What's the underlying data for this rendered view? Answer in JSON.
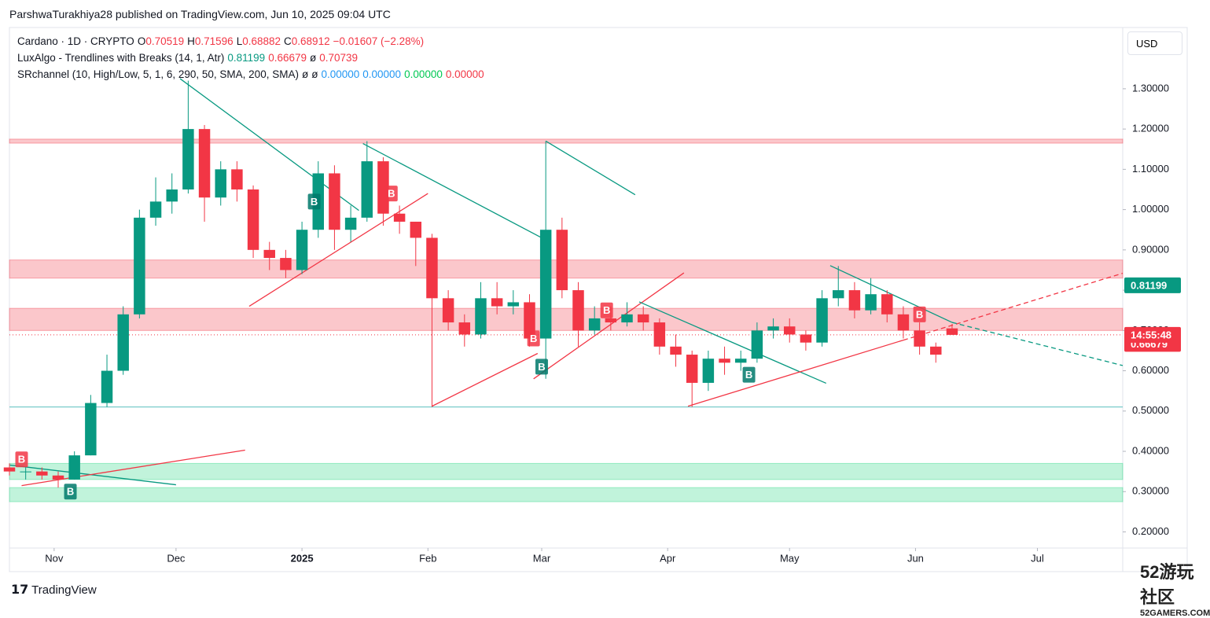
{
  "header": {
    "published": "ParshwaTurakhiya28 published on TradingView.com, Jun 10, 2025 09:04 UTC",
    "currency": "USD",
    "brand": "TradingView"
  },
  "legend": {
    "symbol": "Cardano · 1D · CRYPTO",
    "ohlc": [
      {
        "k": "O",
        "v": "0.70519"
      },
      {
        "k": "H",
        "v": "0.71596"
      },
      {
        "k": "L",
        "v": "0.68882"
      },
      {
        "k": "C",
        "v": "0.68912"
      }
    ],
    "change": "−0.01607 (−2.28%)",
    "indicators": [
      {
        "name": "LuxAlgo - Trendlines with Breaks (14, 1, Atr)",
        "values": [
          {
            "text": "0.81199",
            "color": "#089981"
          },
          {
            "text": "0.66679",
            "color": "#f23645"
          },
          {
            "text": "ø",
            "color": "#131722"
          },
          {
            "text": "0.70739",
            "color": "#f23645"
          }
        ]
      },
      {
        "name": "SRchannel (10, High/Low, 5, 1, 6, 290, 50, SMA, 200, SMA)",
        "values": [
          {
            "text": "ø",
            "color": "#131722"
          },
          {
            "text": "ø",
            "color": "#131722"
          },
          {
            "text": "0.00000",
            "color": "#2196f3"
          },
          {
            "text": "0.00000",
            "color": "#2196f3"
          },
          {
            "text": "0.00000",
            "color": "#00c853"
          },
          {
            "text": "0.00000",
            "color": "#f23645"
          }
        ]
      }
    ]
  },
  "watermark": {
    "title": "52游玩社区",
    "site": "52GAMERS.COM"
  },
  "chart_data": {
    "type": "candlestick",
    "xlim": [
      0,
      274
    ],
    "ylim": [
      0.16,
      1.452
    ],
    "xticks": [
      {
        "value": 11,
        "label": "Nov"
      },
      {
        "value": 41,
        "label": "Dec"
      },
      {
        "value": 72,
        "label": "2025"
      },
      {
        "value": 103,
        "label": "Feb"
      },
      {
        "value": 131,
        "label": "Mar"
      },
      {
        "value": 162,
        "label": "Apr"
      },
      {
        "value": 192,
        "label": "May"
      },
      {
        "value": 223,
        "label": "Jun"
      },
      {
        "value": 253,
        "label": "Jul"
      }
    ],
    "yticks": [
      {
        "value": 0.2,
        "label": "0.20000"
      },
      {
        "value": 0.3,
        "label": "0.30000"
      },
      {
        "value": 0.4,
        "label": "0.40000"
      },
      {
        "value": 0.5,
        "label": "0.50000"
      },
      {
        "value": 0.6,
        "label": "0.60000"
      },
      {
        "value": 0.7,
        "label": "0.70000"
      },
      {
        "value": 0.8,
        "label": "0.80000"
      },
      {
        "value": 0.9,
        "label": "0.90000"
      },
      {
        "value": 1.0,
        "label": "1.00000"
      },
      {
        "value": 1.1,
        "label": "1.10000"
      },
      {
        "value": 1.2,
        "label": "1.20000"
      },
      {
        "value": 1.3,
        "label": "1.30000"
      }
    ],
    "up_color": "#089981",
    "down_color": "#f23645",
    "x": [
      0,
      4,
      8,
      12,
      16,
      20,
      24,
      28,
      32,
      36,
      40,
      44,
      48,
      52,
      56,
      60,
      64,
      68,
      72,
      76,
      80,
      84,
      88,
      92,
      96,
      100,
      104,
      108,
      112,
      116,
      120,
      124,
      128,
      132,
      136,
      140,
      144,
      148,
      152,
      156,
      160,
      164,
      168,
      172,
      176,
      180,
      184,
      188,
      192,
      196,
      200,
      204,
      208,
      212,
      216,
      220,
      224,
      228,
      232
    ],
    "open": [
      0.36,
      0.35,
      0.35,
      0.34,
      0.33,
      0.39,
      0.52,
      0.6,
      0.74,
      0.98,
      1.02,
      1.05,
      1.2,
      1.03,
      1.1,
      1.05,
      0.9,
      0.88,
      0.85,
      0.95,
      1.09,
      0.95,
      0.98,
      1.12,
      0.99,
      0.97,
      0.93,
      0.78,
      0.72,
      0.69,
      0.78,
      0.76,
      0.77,
      0.68,
      0.95,
      0.8,
      0.7,
      0.73,
      0.72,
      0.74,
      0.72,
      0.66,
      0.64,
      0.57,
      0.63,
      0.62,
      0.63,
      0.7,
      0.71,
      0.69,
      0.67,
      0.78,
      0.8,
      0.75,
      0.79,
      0.74,
      0.7,
      0.66,
      0.70519
    ],
    "high": [
      0.37,
      0.36,
      0.36,
      0.35,
      0.4,
      0.54,
      0.64,
      0.76,
      1.0,
      1.08,
      1.09,
      1.32,
      1.21,
      1.12,
      1.12,
      1.06,
      0.92,
      0.9,
      0.97,
      1.12,
      1.11,
      1.01,
      1.17,
      1.13,
      1.01,
      0.97,
      0.94,
      0.8,
      0.74,
      0.82,
      0.82,
      0.8,
      0.79,
      1.17,
      0.98,
      0.82,
      0.76,
      0.76,
      0.77,
      0.76,
      0.73,
      0.69,
      0.65,
      0.65,
      0.66,
      0.65,
      0.72,
      0.73,
      0.73,
      0.7,
      0.8,
      0.86,
      0.82,
      0.83,
      0.8,
      0.76,
      0.72,
      0.67,
      0.71596
    ],
    "low": [
      0.34,
      0.33,
      0.33,
      0.31,
      0.33,
      0.39,
      0.51,
      0.59,
      0.73,
      0.96,
      0.99,
      1.04,
      0.97,
      1.01,
      1.02,
      0.88,
      0.85,
      0.83,
      0.84,
      0.93,
      0.9,
      0.92,
      0.97,
      0.96,
      0.94,
      0.86,
      0.51,
      0.7,
      0.66,
      0.68,
      0.74,
      0.74,
      0.66,
      0.58,
      0.78,
      0.66,
      0.69,
      0.7,
      0.71,
      0.7,
      0.64,
      0.61,
      0.51,
      0.55,
      0.59,
      0.6,
      0.62,
      0.68,
      0.67,
      0.65,
      0.66,
      0.76,
      0.73,
      0.74,
      0.72,
      0.68,
      0.64,
      0.62,
      0.68882
    ],
    "close": [
      0.35,
      0.35,
      0.34,
      0.33,
      0.39,
      0.52,
      0.6,
      0.74,
      0.98,
      1.02,
      1.05,
      1.2,
      1.03,
      1.1,
      1.05,
      0.9,
      0.88,
      0.85,
      0.95,
      1.09,
      0.95,
      0.98,
      1.12,
      0.99,
      0.97,
      0.93,
      0.78,
      0.72,
      0.69,
      0.78,
      0.76,
      0.77,
      0.68,
      0.95,
      0.8,
      0.7,
      0.73,
      0.72,
      0.74,
      0.72,
      0.66,
      0.64,
      0.57,
      0.63,
      0.62,
      0.63,
      0.7,
      0.71,
      0.69,
      0.67,
      0.78,
      0.8,
      0.75,
      0.79,
      0.74,
      0.7,
      0.66,
      0.64,
      0.68912
    ],
    "zones": [
      {
        "range": [
          1.165,
          1.175
        ],
        "color": "#f23645"
      },
      {
        "range": [
          0.83,
          0.875
        ],
        "color": "#f23645"
      },
      {
        "range": [
          0.7,
          0.755
        ],
        "color": "#f23645"
      },
      {
        "range": [
          0.33,
          0.37
        ],
        "color": "#22d47f"
      },
      {
        "range": [
          0.275,
          0.31
        ],
        "color": "#22d47f"
      }
    ],
    "support_line": {
      "value": 0.51,
      "color": "#5bc0be"
    },
    "trendlines": [
      {
        "points": [
          0,
          0.366,
          41,
          0.317
        ],
        "color": "#089981",
        "dashed": false
      },
      {
        "points": [
          3,
          0.315,
          58,
          0.403
        ],
        "color": "#f23645",
        "dashed": false
      },
      {
        "points": [
          42,
          1.325,
          86,
          0.998
        ],
        "color": "#089981",
        "dashed": false
      },
      {
        "points": [
          87,
          1.164,
          131,
          0.93
        ],
        "color": "#089981",
        "dashed": false
      },
      {
        "points": [
          59,
          0.76,
          103,
          1.04
        ],
        "color": "#f23645",
        "dashed": false
      },
      {
        "points": [
          132,
          1.17,
          154,
          1.037
        ],
        "color": "#089981",
        "dashed": false
      },
      {
        "points": [
          104,
          0.512,
          130,
          0.643
        ],
        "color": "#f23645",
        "dashed": false
      },
      {
        "points": [
          129,
          0.58,
          166,
          0.843
        ],
        "color": "#f23645",
        "dashed": false
      },
      {
        "points": [
          155,
          0.771,
          201,
          0.569
        ],
        "color": "#089981",
        "dashed": false
      },
      {
        "points": [
          167,
          0.512,
          220,
          0.676
        ],
        "color": "#f23645",
        "dashed": false
      },
      {
        "points": [
          220,
          0.676,
          274,
          0.842
        ],
        "color": "#f23645",
        "dashed": true
      },
      {
        "points": [
          202,
          0.861,
          232,
          0.72
        ],
        "color": "#089981",
        "dashed": false
      },
      {
        "points": [
          232,
          0.72,
          274,
          0.613
        ],
        "color": "#089981",
        "dashed": true
      }
    ],
    "breaks": [
      {
        "x": 3,
        "y": 0.38,
        "label": "B",
        "color": "#f23645"
      },
      {
        "x": 94,
        "y": 1.04,
        "label": "B",
        "color": "#f23645"
      },
      {
        "x": 129,
        "y": 0.68,
        "label": "B",
        "color": "#f23645"
      },
      {
        "x": 147,
        "y": 0.75,
        "label": "B",
        "color": "#f23645"
      },
      {
        "x": 224,
        "y": 0.74,
        "label": "B",
        "color": "#f23645"
      },
      {
        "x": 75,
        "y": 1.02,
        "label": "B",
        "color": "#00796b"
      },
      {
        "x": 15,
        "y": 0.3,
        "label": "B",
        "color": "#00796b"
      },
      {
        "x": 131,
        "y": 0.61,
        "label": "B",
        "color": "#00796b"
      },
      {
        "x": 182,
        "y": 0.59,
        "label": "B",
        "color": "#00796b"
      }
    ],
    "price_labels": [
      {
        "value": 0.81199,
        "color": "#089981"
      },
      {
        "value": 0.66679,
        "color": "#f23645"
      }
    ],
    "last_price": {
      "value": 0.68912,
      "countdown": "14:55:48",
      "color": "#f23645"
    }
  }
}
